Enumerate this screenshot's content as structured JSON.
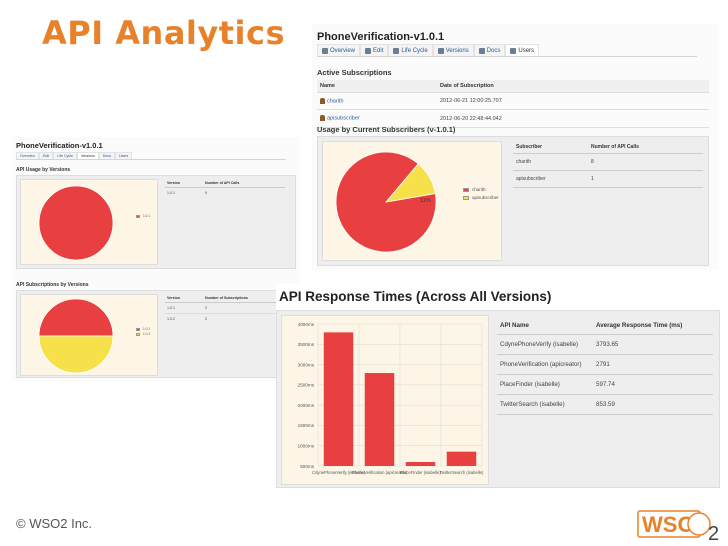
{
  "slide": {
    "title": "API Analytics",
    "footer": "© WSO2 Inc.",
    "logo_text": "WSO",
    "logo_sub": "2"
  },
  "tabs": [
    "Overview",
    "Edit",
    "Life Cycle",
    "Versions",
    "Docs",
    "Users"
  ],
  "colors": {
    "accent": "#e8822a",
    "red": "#e84040",
    "yellow": "#f6e14a",
    "chart_bg": "#fdf6e6"
  },
  "top_right": {
    "title": "PhoneVerification-v1.0.1",
    "active_tab": "Users",
    "active_subscriptions_heading": "Active Subscriptions",
    "subs_headers": [
      "Name",
      "Date of Subscription"
    ],
    "subs_rows": [
      {
        "name": "charith",
        "date": "2012-06-21 12:00:25.707"
      },
      {
        "name": "apisubscriber",
        "date": "2012-06-20 22:48:44.042"
      }
    ],
    "usage_heading": "Usage by Current Subscribers (v-1.0.1)",
    "usage_headers": [
      "Subscriber",
      "Number of API Calls"
    ],
    "usage_rows": [
      {
        "subscriber": "charith",
        "calls": "8"
      },
      {
        "subscriber": "apisubscriber",
        "calls": "1"
      }
    ],
    "pie_label": "11%",
    "legend": [
      "charith",
      "apisubscriber"
    ]
  },
  "left": {
    "title": "PhoneVerification-v1.0.1",
    "active_tab": "Versions",
    "usage_heading": "API Usage by Versions",
    "usage_headers": [
      "Version",
      "Number of API Calls"
    ],
    "usage_rows": [
      {
        "version": "1.0.1",
        "value": "9"
      }
    ],
    "usage_legend": [
      "1.0.1"
    ],
    "subs_heading": "API Subscriptions by Versions",
    "subs_headers": [
      "Version",
      "Number of Subscriptions"
    ],
    "subs_rows": [
      {
        "version": "1.0.1",
        "value": "2"
      },
      {
        "version": "1.0.2",
        "value": "2"
      }
    ],
    "subs_legend": [
      "1.0.1",
      "1.0.2"
    ]
  },
  "response": {
    "heading": "API Response Times (Across All Versions)",
    "headers": [
      "API Name",
      "Average Response Time (ms)"
    ],
    "rows": [
      {
        "api": "CdynePhoneVerify (isabelle)",
        "time": "3793.65"
      },
      {
        "api": "PhoneVerification (apicreator)",
        "time": "2791"
      },
      {
        "api": "PlaceFinder (isabelle)",
        "time": "597.74"
      },
      {
        "api": "TwitterSearch (isabelle)",
        "time": "853.59"
      }
    ]
  },
  "chart_data": [
    {
      "type": "pie",
      "title": "",
      "categories": [
        "charith",
        "apisubscriber"
      ],
      "values": [
        8,
        1
      ],
      "labels": [
        "",
        "11%"
      ]
    },
    {
      "type": "pie",
      "title": "API Usage by Versions",
      "categories": [
        "1.0.1"
      ],
      "values": [
        9
      ]
    },
    {
      "type": "pie",
      "title": "API Subscriptions by Versions",
      "categories": [
        "1.0.1",
        "1.0.2"
      ],
      "values": [
        2,
        2
      ]
    },
    {
      "type": "bar",
      "title": "API Response Times (Across All Versions)",
      "categories": [
        "CdynePhoneVerify (isabelle)",
        "PhoneVerification (apicreator)",
        "PlaceFinder (isabelle)",
        "TwitterSearch (isabelle)"
      ],
      "values": [
        3793.65,
        2791,
        597.74,
        853.59
      ],
      "y_ticks": [
        "500ms",
        "1000ms",
        "1500ms",
        "2000ms",
        "2500ms",
        "3000ms",
        "3500ms",
        "4000ms"
      ],
      "ylim": [
        500,
        4000
      ],
      "grid": true
    }
  ]
}
